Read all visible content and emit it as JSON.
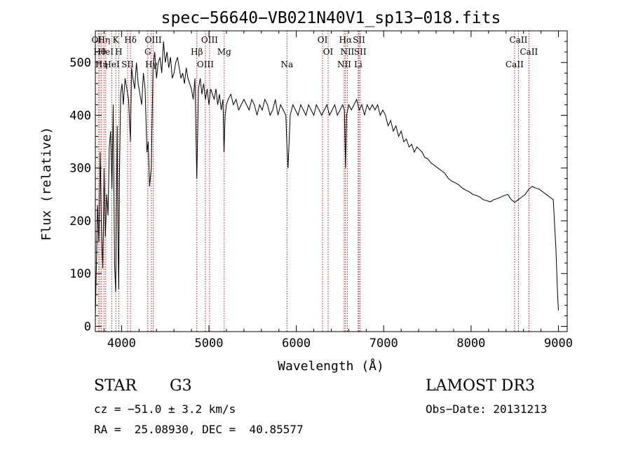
{
  "chart_data": {
    "type": "line",
    "title": "spec−56640−VB021N40V1_sp13−018.fits",
    "xlabel": "Wavelength (Å)",
    "ylabel": "Flux (relative)",
    "xlim": [
      3700,
      9100
    ],
    "ylim": [
      -10,
      560
    ],
    "xticks": [
      4000,
      5000,
      6000,
      7000,
      8000,
      9000
    ],
    "yticks": [
      0,
      100,
      200,
      300,
      400,
      500
    ],
    "xtick_labels": [
      "4000",
      "5000",
      "6000",
      "7000",
      "8000",
      "9000"
    ],
    "ytick_labels": [
      "0",
      "100",
      "200",
      "300",
      "400",
      "500"
    ],
    "series": [
      {
        "name": "flux",
        "x": [
          3700,
          3715,
          3725,
          3740,
          3755,
          3770,
          3785,
          3800,
          3815,
          3830,
          3845,
          3860,
          3875,
          3890,
          3905,
          3920,
          3933,
          3940,
          3950,
          3960,
          3968,
          3975,
          3990,
          4005,
          4020,
          4040,
          4060,
          4080,
          4101,
          4115,
          4130,
          4150,
          4170,
          4190,
          4210,
          4230,
          4250,
          4270,
          4290,
          4305,
          4320,
          4340,
          4360,
          4380,
          4400,
          4420,
          4440,
          4460,
          4480,
          4500,
          4520,
          4540,
          4560,
          4580,
          4600,
          4620,
          4640,
          4660,
          4680,
          4700,
          4720,
          4740,
          4760,
          4780,
          4800,
          4820,
          4840,
          4861,
          4880,
          4900,
          4920,
          4940,
          4960,
          4980,
          5000,
          5020,
          5040,
          5060,
          5080,
          5100,
          5120,
          5140,
          5160,
          5172,
          5185,
          5200,
          5220,
          5250,
          5280,
          5310,
          5340,
          5370,
          5400,
          5430,
          5460,
          5490,
          5520,
          5550,
          5580,
          5610,
          5640,
          5670,
          5700,
          5730,
          5760,
          5790,
          5820,
          5850,
          5880,
          5893,
          5905,
          5930,
          5960,
          5990,
          6020,
          6050,
          6080,
          6110,
          6140,
          6170,
          6200,
          6230,
          6260,
          6290,
          6320,
          6350,
          6380,
          6410,
          6440,
          6470,
          6500,
          6530,
          6550,
          6563,
          6575,
          6600,
          6630,
          6660,
          6690,
          6720,
          6750,
          6780,
          6810,
          6840,
          6870,
          6900,
          6930,
          6960,
          6990,
          7020,
          7050,
          7080,
          7110,
          7140,
          7170,
          7200,
          7230,
          7260,
          7290,
          7320,
          7350,
          7380,
          7410,
          7440,
          7470,
          7500,
          7540,
          7580,
          7620,
          7660,
          7700,
          7740,
          7780,
          7820,
          7860,
          7900,
          7940,
          7980,
          8020,
          8060,
          8100,
          8140,
          8180,
          8220,
          8260,
          8300,
          8340,
          8380,
          8420,
          8460,
          8500,
          8540,
          8580,
          8620,
          8660,
          8700,
          8740,
          8780,
          8820,
          8860,
          8900,
          8940,
          8970,
          8990,
          9000
        ],
        "y": [
          20,
          140,
          230,
          160,
          330,
          180,
          110,
          300,
          170,
          250,
          210,
          340,
          370,
          260,
          420,
          120,
          65,
          200,
          380,
          150,
          70,
          280,
          440,
          460,
          420,
          470,
          450,
          430,
          350,
          490,
          470,
          450,
          500,
          460,
          440,
          420,
          480,
          450,
          330,
          350,
          265,
          300,
          490,
          520,
          470,
          500,
          510,
          480,
          540,
          500,
          520,
          490,
          510,
          470,
          480,
          500,
          510,
          490,
          470,
          480,
          460,
          490,
          470,
          460,
          450,
          430,
          470,
          280,
          450,
          470,
          440,
          460,
          430,
          450,
          420,
          450,
          440,
          430,
          450,
          420,
          440,
          410,
          430,
          330,
          400,
          420,
          430,
          440,
          420,
          430,
          410,
          420,
          430,
          420,
          410,
          430,
          420,
          400,
          420,
          410,
          430,
          420,
          400,
          410,
          430,
          400,
          420,
          410,
          400,
          340,
          300,
          400,
          420,
          410,
          400,
          420,
          410,
          400,
          420,
          410,
          400,
          420,
          410,
          400,
          410,
          420,
          400,
          410,
          420,
          400,
          410,
          420,
          410,
          300,
          400,
          420,
          410,
          420,
          430,
          410,
          420,
          400,
          420,
          410,
          420,
          410,
          420,
          400,
          410,
          400,
          380,
          390,
          370,
          380,
          360,
          370,
          350,
          355,
          340,
          345,
          330,
          340,
          335,
          330,
          320,
          318,
          310,
          305,
          300,
          295,
          290,
          280,
          275,
          272,
          268,
          262,
          258,
          255,
          250,
          248,
          245,
          240,
          238,
          236,
          240,
          242,
          245,
          248,
          250,
          240,
          235,
          240,
          245,
          250,
          260,
          265,
          262,
          260,
          255,
          250,
          245,
          240,
          150,
          60,
          30
        ]
      }
    ],
    "lines": [
      {
        "x": 3734,
        "label": "OII"
      },
      {
        "x": 3750,
        "label": "Hθ"
      },
      {
        "x": 3770,
        "label": "Hη"
      },
      {
        "x": 3798,
        "label": "Hη"
      },
      {
        "x": 3819,
        "label": "HeI"
      },
      {
        "x": 3889,
        "label": "HeI"
      },
      {
        "x": 3934,
        "label": "K"
      },
      {
        "x": 3968,
        "label": "H"
      },
      {
        "x": 4069,
        "label": "SII"
      },
      {
        "x": 4102,
        "label": "Hδ"
      },
      {
        "x": 4300,
        "label": "G"
      },
      {
        "x": 4340,
        "label": "Hγ"
      },
      {
        "x": 4363,
        "label": "OIII"
      },
      {
        "x": 4861,
        "label": "Hβ"
      },
      {
        "x": 4959,
        "label": "OIII"
      },
      {
        "x": 5007,
        "label": "OIII"
      },
      {
        "x": 5175,
        "label": "Mg"
      },
      {
        "x": 5893,
        "label": "Na"
      },
      {
        "x": 6300,
        "label": "OI"
      },
      {
        "x": 6364,
        "label": "OI"
      },
      {
        "x": 6548,
        "label": "NII"
      },
      {
        "x": 6563,
        "label": "Hα"
      },
      {
        "x": 6584,
        "label": "NII"
      },
      {
        "x": 6708,
        "label": "Li"
      },
      {
        "x": 6717,
        "label": "SII"
      },
      {
        "x": 6731,
        "label": "SII"
      },
      {
        "x": 8498,
        "label": "CaII"
      },
      {
        "x": 8542,
        "label": "CaII"
      },
      {
        "x": 8662,
        "label": "CaII"
      }
    ],
    "line_color": "#b22222"
  },
  "info": {
    "object_type": "STAR",
    "subclass": "G3",
    "survey": "LAMOST DR3",
    "cz_text": "cz = −51.0 ± 3.2 km/s",
    "obs_date_text": "Obs−Date: 20131213",
    "radec_text": "RA =  25.08930, DEC =  40.85577"
  }
}
